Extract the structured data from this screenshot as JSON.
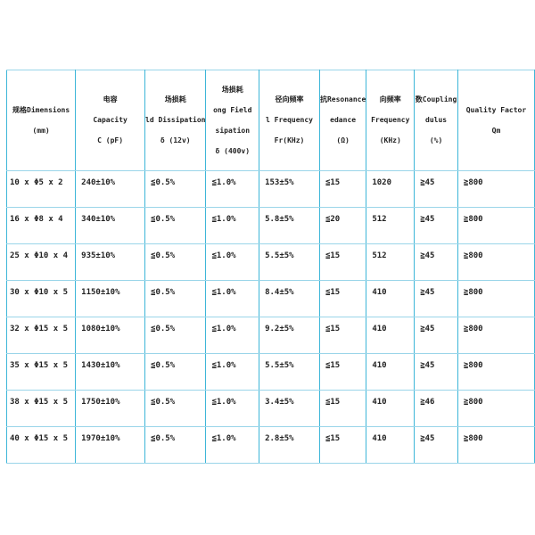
{
  "colors": {
    "border_vertical": "#3db6d8",
    "border_horizontal": "#9ad5e9",
    "text": "#222222",
    "background": "#ffffff"
  },
  "table": {
    "columns": [
      {
        "id": "dimensions",
        "header_lines": [
          "规格Dimensions",
          "(mm)"
        ]
      },
      {
        "id": "capacity",
        "header_lines": [
          "电容",
          "Capacity",
          "C (pF)"
        ]
      },
      {
        "id": "weak-field-dissipation",
        "header_lines": [
          "场损耗",
          "ld Dissipation",
          "δ (12v)"
        ]
      },
      {
        "id": "strong-field-dissipation",
        "header_lines": [
          "场损耗",
          "ong Field",
          "sipation",
          "δ (400v)"
        ]
      },
      {
        "id": "radial-frequency",
        "header_lines": [
          "径向频率",
          "l Frequency",
          "Fr(KHz)"
        ]
      },
      {
        "id": "resonance-impedance",
        "header_lines": [
          "抗Resonance",
          "edance",
          "(Ω)"
        ]
      },
      {
        "id": "axial-frequency",
        "header_lines": [
          "向频率",
          "Frequency",
          "(KHz)"
        ]
      },
      {
        "id": "coupling-modulus",
        "header_lines": [
          "数Coupling",
          "dulus",
          "(%)"
        ]
      },
      {
        "id": "quality-factor",
        "header_lines": [
          "Quality Factor",
          "Qm"
        ]
      }
    ],
    "rows": [
      [
        "10 x Φ5 x 2",
        "240±10%",
        "≦0.5%",
        "≦1.0%",
        "153±5%",
        "≦15",
        "1020",
        "≧45",
        "≧800"
      ],
      [
        "16 x Φ8 x 4",
        "340±10%",
        "≦0.5%",
        "≦1.0%",
        "5.8±5%",
        "≦20",
        "512",
        "≧45",
        "≧800"
      ],
      [
        "25 x Φ10 x 4",
        "935±10%",
        "≦0.5%",
        "≦1.0%",
        "5.5±5%",
        "≦15",
        "512",
        "≧45",
        "≧800"
      ],
      [
        "30 x Φ10 x 5",
        "1150±10%",
        "≦0.5%",
        "≦1.0%",
        "8.4±5%",
        "≦15",
        "410",
        "≧45",
        "≧800"
      ],
      [
        "32 x Φ15 x 5",
        "1080±10%",
        "≦0.5%",
        "≦1.0%",
        "9.2±5%",
        "≦15",
        "410",
        "≧45",
        "≧800"
      ],
      [
        "35 x Φ15 x 5",
        "1430±10%",
        "≦0.5%",
        "≦1.0%",
        "5.5±5%",
        "≦15",
        "410",
        "≧45",
        "≧800"
      ],
      [
        "38 x Φ15 x 5",
        "1750±10%",
        "≦0.5%",
        "≦1.0%",
        "3.4±5%",
        "≦15",
        "410",
        "≧46",
        "≧800"
      ],
      [
        "40 x Φ15 x 5",
        "1970±10%",
        "≦0.5%",
        "≦1.0%",
        "2.8±5%",
        "≦15",
        "410",
        "≧45",
        "≧800"
      ]
    ]
  }
}
